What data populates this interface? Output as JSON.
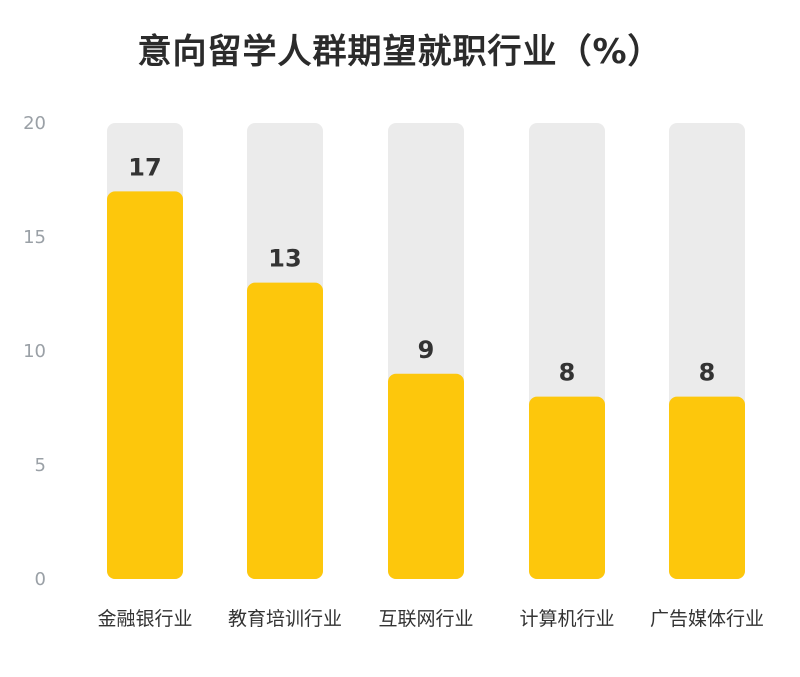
{
  "chart_data": {
    "type": "bar",
    "title": "意向留学人群期望就职行业（%）",
    "categories": [
      "金融银行业",
      "教育培训行业",
      "互联网行业",
      "计算机行业",
      "广告媒体行业"
    ],
    "values": [
      17,
      13,
      9,
      8,
      8
    ],
    "data_labels": [
      "17",
      "13",
      "9",
      "8",
      "8"
    ],
    "ylim": [
      0,
      20
    ],
    "yticks": [
      "0",
      "5",
      "10",
      "15",
      "20"
    ],
    "ytick_values": [
      0,
      5,
      10,
      15,
      20
    ],
    "grid": false,
    "legend": "none",
    "colors": {
      "bar": "#FDC70C",
      "track": "#EBEBEB"
    }
  }
}
